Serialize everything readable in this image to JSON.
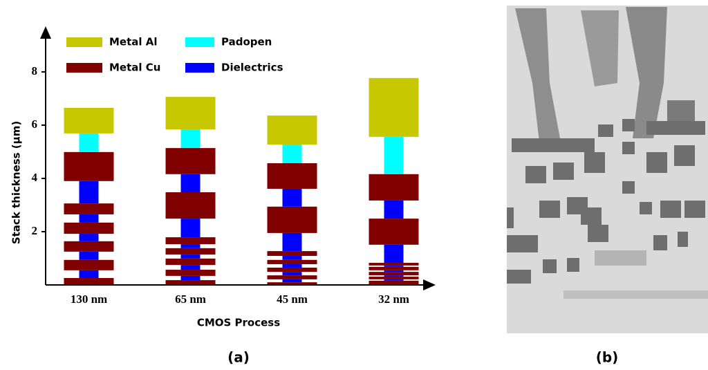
{
  "chart_data": {
    "type": "layer-stack",
    "y_label": "Stack thickness (µm)",
    "x_label": "CMOS Process",
    "caption": "(a)",
    "categories": [
      "130 nm",
      "65 nm",
      "45 nm",
      "32 nm"
    ],
    "series": [
      {
        "name": "Metal Al",
        "color": "#c8c800",
        "wide": true
      },
      {
        "name": "Padopen",
        "color": "#00ffff",
        "wide": false
      },
      {
        "name": "Metal Cu",
        "color": "#800000",
        "wide": true
      },
      {
        "name": "Dielectrics",
        "color": "#0000ff",
        "wide": false
      }
    ],
    "stacks": [
      [
        {
          "series": 2,
          "value": 0.26
        },
        {
          "series": 3,
          "value": 0.29
        },
        {
          "series": 2,
          "value": 0.39
        },
        {
          "series": 3,
          "value": 0.31
        },
        {
          "series": 2,
          "value": 0.39
        },
        {
          "series": 3,
          "value": 0.28
        },
        {
          "series": 2,
          "value": 0.42
        },
        {
          "series": 3,
          "value": 0.31
        },
        {
          "series": 2,
          "value": 0.41
        },
        {
          "series": 3,
          "value": 0.84
        },
        {
          "series": 2,
          "value": 1.09
        },
        {
          "series": 1,
          "value": 0.7
        },
        {
          "series": 0,
          "value": 0.96
        }
      ],
      [
        {
          "series": 2,
          "value": 0.18
        },
        {
          "series": 3,
          "value": 0.16
        },
        {
          "series": 2,
          "value": 0.23
        },
        {
          "series": 3,
          "value": 0.18
        },
        {
          "series": 2,
          "value": 0.24
        },
        {
          "series": 3,
          "value": 0.15
        },
        {
          "series": 2,
          "value": 0.24
        },
        {
          "series": 3,
          "value": 0.15
        },
        {
          "series": 2,
          "value": 0.26
        },
        {
          "series": 3,
          "value": 0.7
        },
        {
          "series": 2,
          "value": 0.99
        },
        {
          "series": 3,
          "value": 0.68
        },
        {
          "series": 2,
          "value": 0.98
        },
        {
          "series": 1,
          "value": 0.7
        },
        {
          "series": 0,
          "value": 1.22
        }
      ],
      [
        {
          "series": 2,
          "value": 0.1
        },
        {
          "series": 3,
          "value": 0.11
        },
        {
          "series": 2,
          "value": 0.15
        },
        {
          "series": 3,
          "value": 0.13
        },
        {
          "series": 2,
          "value": 0.16
        },
        {
          "series": 3,
          "value": 0.13
        },
        {
          "series": 2,
          "value": 0.16
        },
        {
          "series": 3,
          "value": 0.15
        },
        {
          "series": 2,
          "value": 0.18
        },
        {
          "series": 3,
          "value": 0.68
        },
        {
          "series": 2,
          "value": 0.99
        },
        {
          "series": 3,
          "value": 0.67
        },
        {
          "series": 2,
          "value": 0.96
        },
        {
          "series": 1,
          "value": 0.7
        },
        {
          "series": 0,
          "value": 1.09
        }
      ],
      [
        {
          "series": 2,
          "value": 0.16
        },
        {
          "series": 3,
          "value": 0.05
        },
        {
          "series": 2,
          "value": 0.1
        },
        {
          "series": 3,
          "value": 0.05
        },
        {
          "series": 2,
          "value": 0.13
        },
        {
          "series": 3,
          "value": 0.06
        },
        {
          "series": 2,
          "value": 0.13
        },
        {
          "series": 3,
          "value": 0.05
        },
        {
          "series": 2,
          "value": 0.1
        },
        {
          "series": 3,
          "value": 0.68
        },
        {
          "series": 2,
          "value": 0.98
        },
        {
          "series": 3,
          "value": 0.68
        },
        {
          "series": 2,
          "value": 0.99
        },
        {
          "series": 1,
          "value": 1.4
        },
        {
          "series": 0,
          "value": 2.21
        }
      ]
    ],
    "ylim": [
      0,
      9.66
    ],
    "yticks": [
      2,
      4,
      6,
      8
    ]
  },
  "image_caption": "(b)"
}
